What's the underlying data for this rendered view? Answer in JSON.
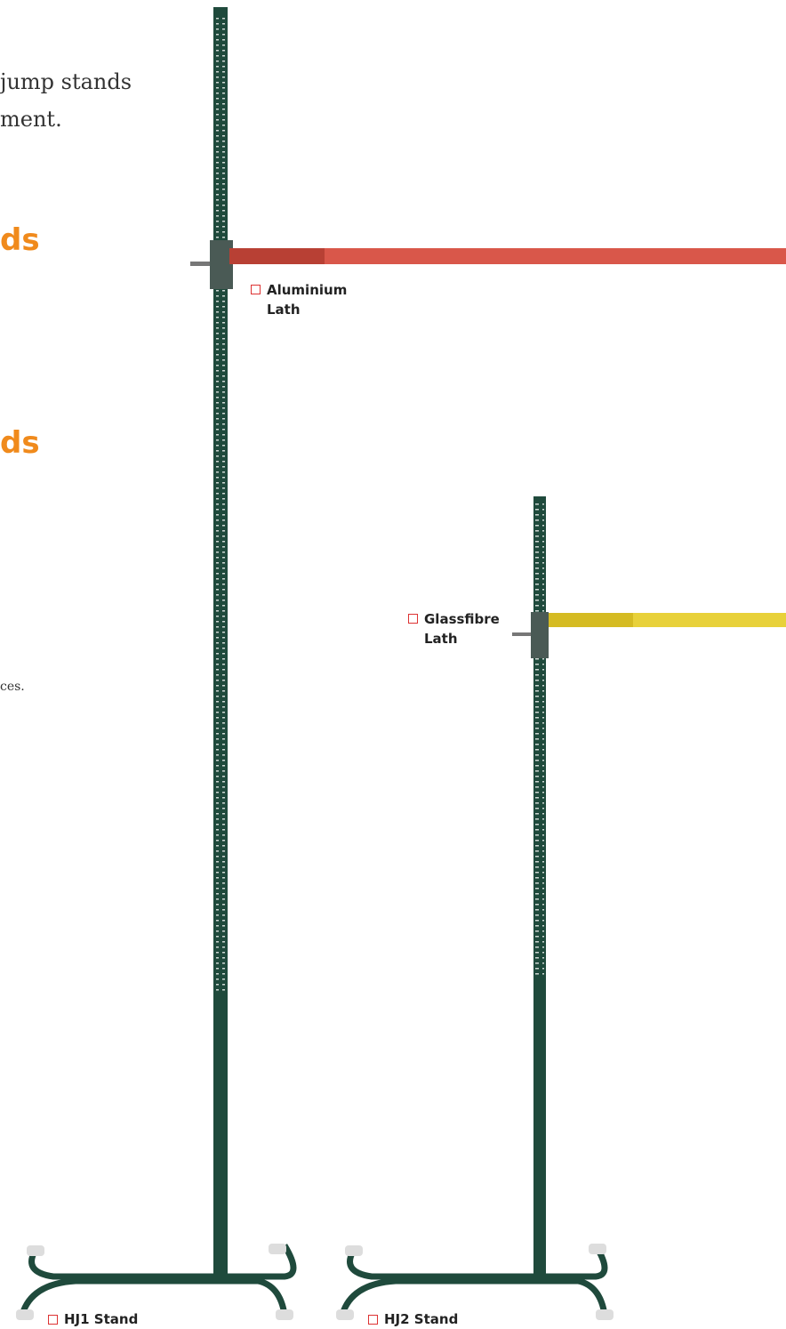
{
  "text": {
    "intro_line_1": "jump stands",
    "intro_line_2": "ment.",
    "heading_1": "ds",
    "heading_2": "ds",
    "note": "ces."
  },
  "labels": {
    "aluminium_lath": [
      "Aluminium",
      "Lath"
    ],
    "glassfibre_lath": [
      "Glassfibre",
      "Lath"
    ],
    "hj1_stand": "HJ1 Stand",
    "hj2_stand": "HJ2 Stand"
  }
}
